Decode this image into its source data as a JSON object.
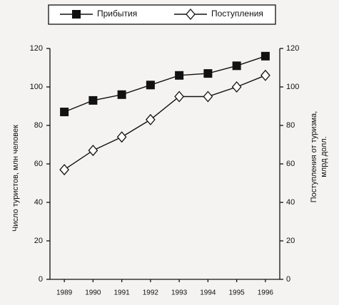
{
  "chart_data": {
    "type": "line",
    "categories": [
      "1989",
      "1990",
      "1991",
      "1992",
      "1993",
      "1994",
      "1995",
      "1996"
    ],
    "series": [
      {
        "name": "Прибытия",
        "color": "#111111",
        "marker": "square",
        "values": [
          87,
          93,
          96,
          101,
          106,
          107,
          111,
          116
        ]
      },
      {
        "name": "Поступления",
        "color": "#111111",
        "marker": "diamond",
        "axis": "y2",
        "values": [
          57,
          67,
          74,
          83,
          95,
          95,
          100,
          106
        ]
      }
    ],
    "ylabel": "Число туристов, млн человек",
    "y2label": [
      "Поступления от туризма,",
      "млрд долл."
    ],
    "ylim": [
      0,
      120
    ],
    "yticks": [
      0,
      20,
      40,
      60,
      80,
      100,
      120
    ],
    "y2lim": [
      0,
      120
    ],
    "y2ticks": [
      0,
      20,
      40,
      60,
      80,
      100,
      120
    ],
    "grid": false,
    "legend": "top"
  }
}
